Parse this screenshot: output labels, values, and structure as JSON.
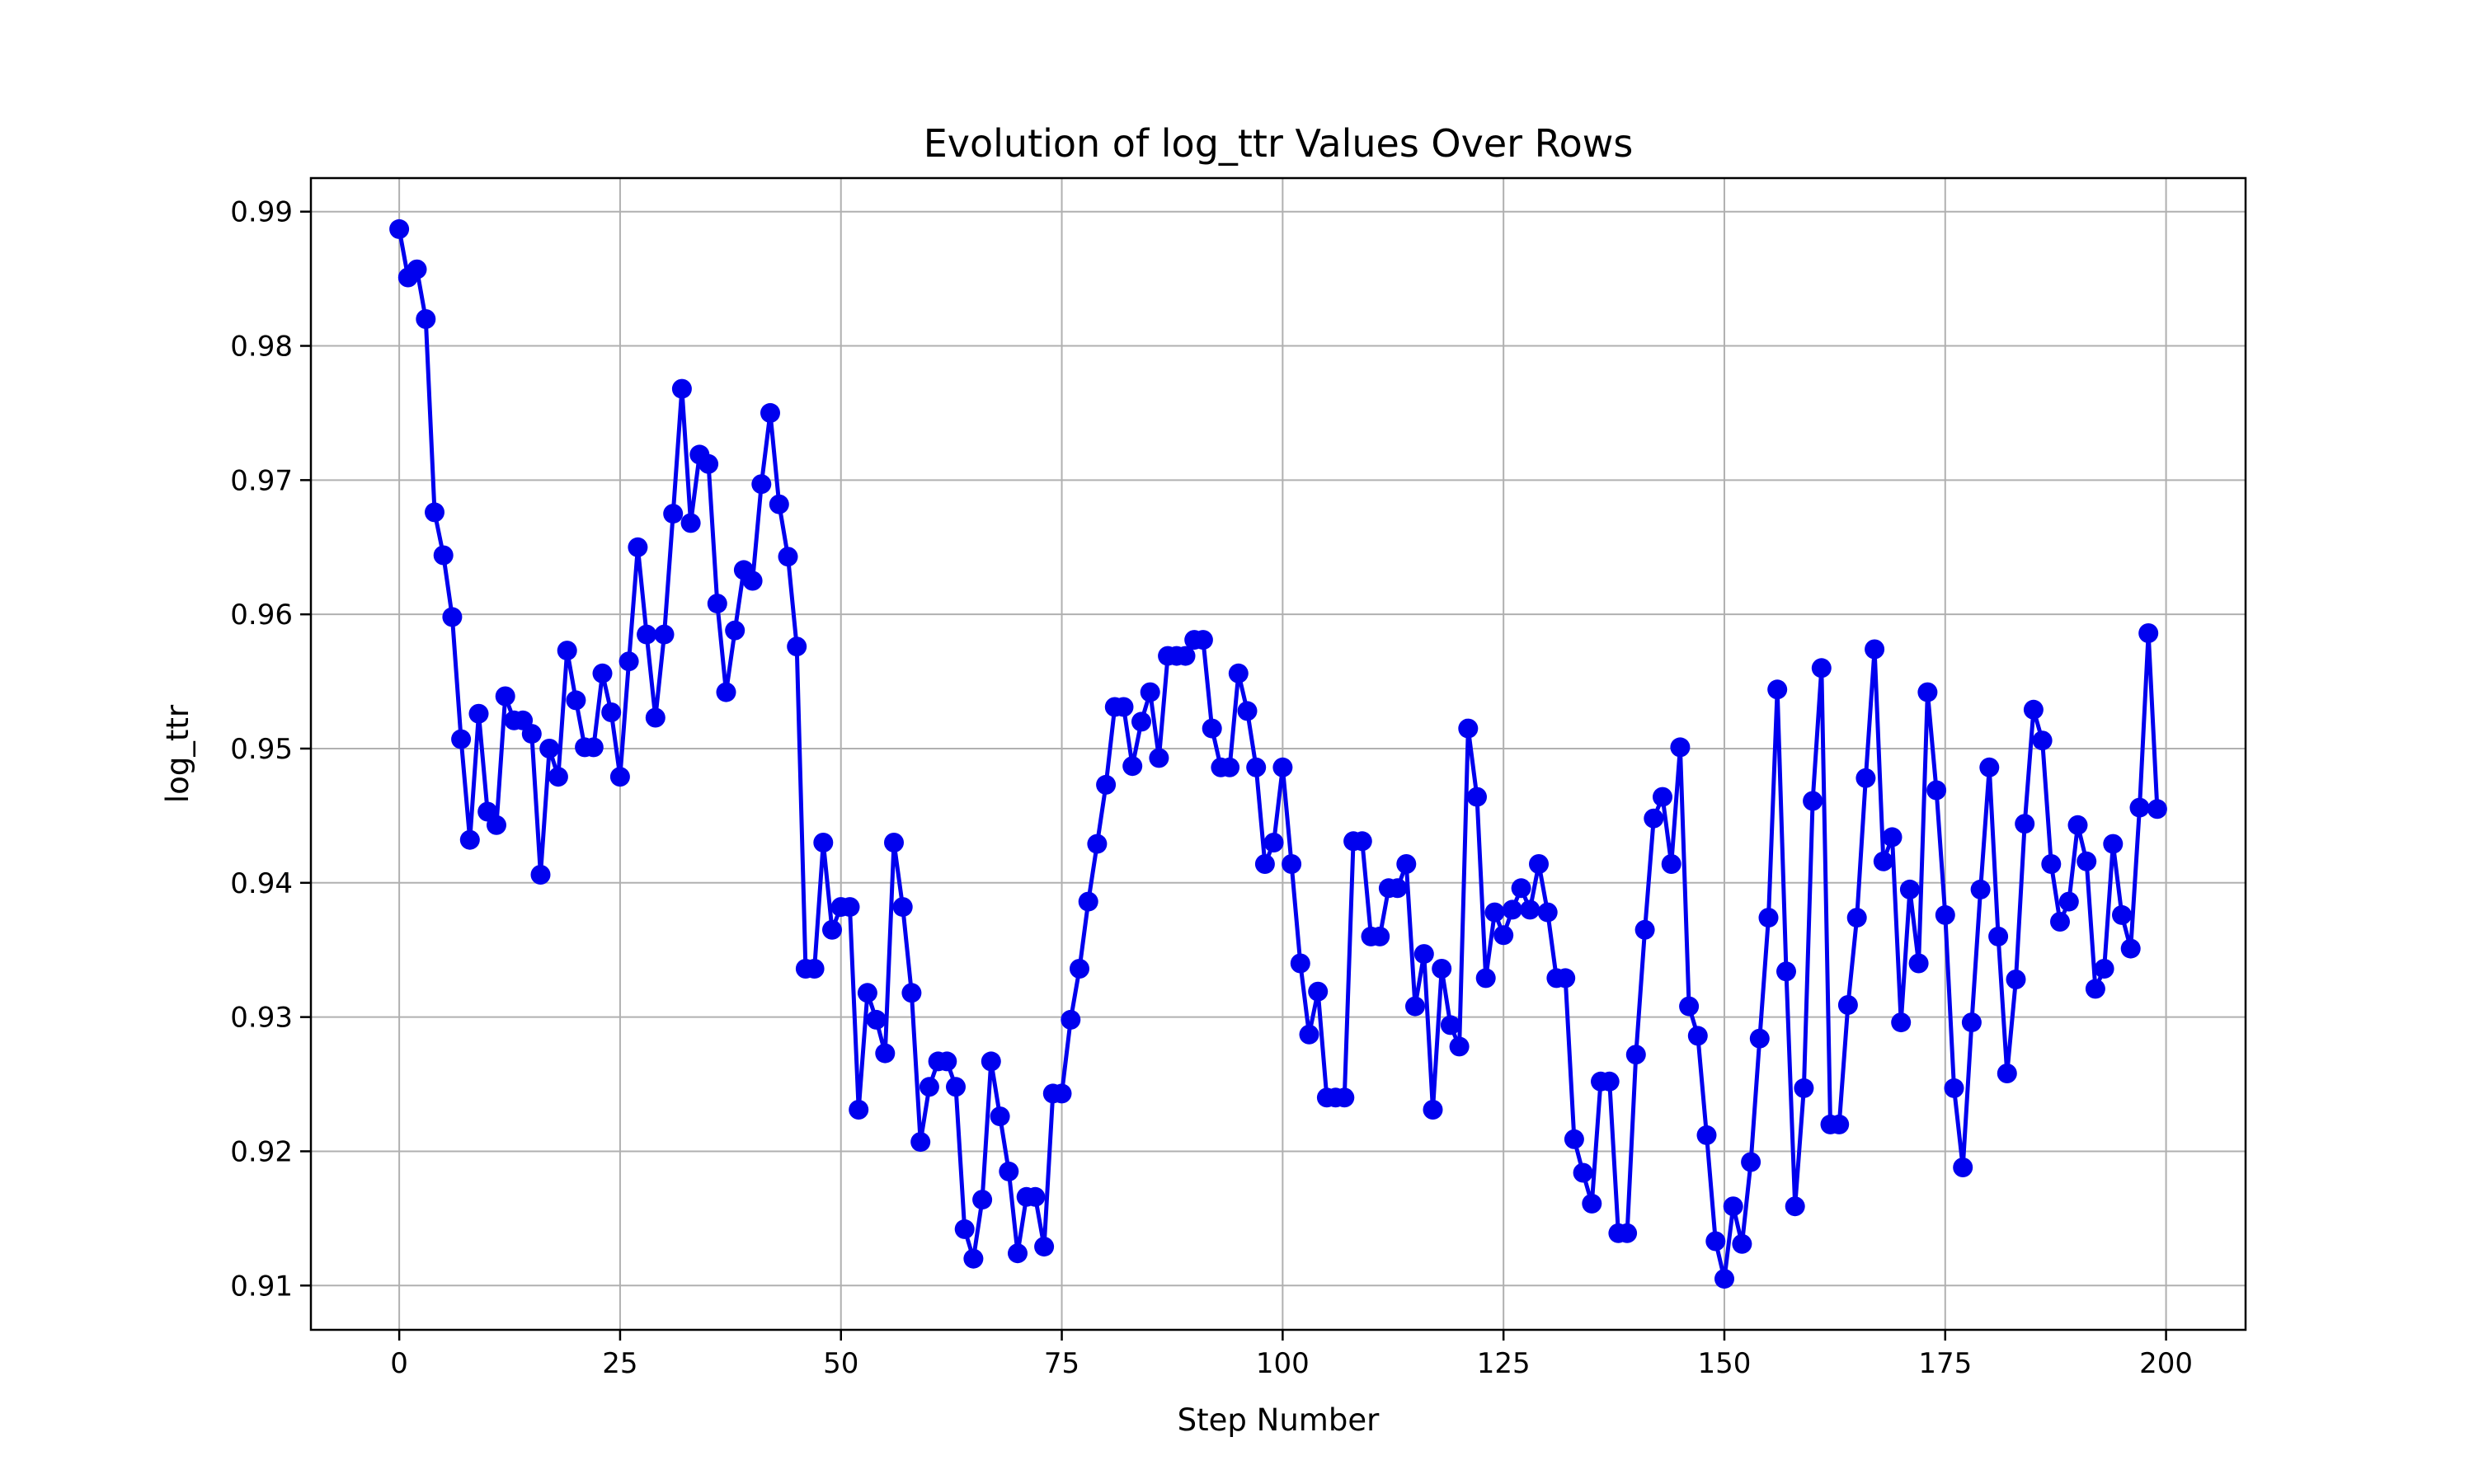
{
  "chart_data": {
    "type": "line",
    "title": "Evolution of log_ttr Values Over Rows",
    "xlabel": "Step Number",
    "ylabel": "log_ttr",
    "xlim": [
      -10,
      209
    ],
    "ylim": [
      0.9067,
      0.9925
    ],
    "xticks": [
      0,
      25,
      50,
      75,
      100,
      125,
      150,
      175,
      200
    ],
    "yticks": [
      0.91,
      0.92,
      0.93,
      0.94,
      0.95,
      0.96,
      0.97,
      0.98,
      0.99
    ],
    "ytick_labels": [
      "0.91",
      "0.92",
      "0.93",
      "0.94",
      "0.95",
      "0.96",
      "0.97",
      "0.98",
      "0.99"
    ],
    "grid": true,
    "line_color": "#0000ee",
    "marker": "circle",
    "series": [
      {
        "values": [
          0.9887,
          0.9851,
          0.9857,
          0.982,
          0.9676,
          0.9644,
          0.9598,
          0.9507,
          0.9432,
          0.9526,
          0.9453,
          0.9443,
          0.9539,
          0.9521,
          0.9521,
          0.9511,
          0.9406,
          0.95,
          0.9479,
          0.9573,
          0.9536,
          0.9501,
          0.9501,
          0.9556,
          0.9527,
          0.9479,
          0.9565,
          0.965,
          0.9585,
          0.9523,
          0.9585,
          0.9675,
          0.9768,
          0.9668,
          0.9719,
          0.9712,
          0.9608,
          0.9542,
          0.9588,
          0.9633,
          0.9625,
          0.9697,
          0.975,
          0.9682,
          0.9643,
          0.9576,
          0.9336,
          0.9336,
          0.943,
          0.9365,
          0.9382,
          0.9382,
          0.9231,
          0.9318,
          0.9298,
          0.9273,
          0.943,
          0.9382,
          0.9318,
          0.9207,
          0.9248,
          0.9267,
          0.9267,
          0.9248,
          0.9142,
          0.912,
          0.9164,
          0.9267,
          0.9226,
          0.9185,
          0.9124,
          0.9166,
          0.9166,
          0.9129,
          0.9243,
          0.9243,
          0.9298,
          0.9336,
          0.9386,
          0.9429,
          0.9473,
          0.9531,
          0.9531,
          0.9487,
          0.952,
          0.9542,
          0.9493,
          0.9569,
          0.9569,
          0.9569,
          0.9581,
          0.9581,
          0.9515,
          0.9486,
          0.9486,
          0.9556,
          0.9528,
          0.9486,
          0.9414,
          0.943,
          0.9486,
          0.9414,
          0.934,
          0.9287,
          0.9319,
          0.924,
          0.924,
          0.924,
          0.9431,
          0.9431,
          0.936,
          0.936,
          0.9396,
          0.9396,
          0.9414,
          0.9308,
          0.9347,
          0.9231,
          0.9336,
          0.9294,
          0.9278,
          0.9515,
          0.9464,
          0.9329,
          0.9378,
          0.9361,
          0.938,
          0.9396,
          0.938,
          0.9414,
          0.9378,
          0.9329,
          0.9329,
          0.9209,
          0.9184,
          0.9161,
          0.9252,
          0.9252,
          0.9139,
          0.9139,
          0.9272,
          0.9365,
          0.9448,
          0.9464,
          0.9414,
          0.9501,
          0.9308,
          0.9286,
          0.9212,
          0.9133,
          0.9105,
          0.9159,
          0.9131,
          0.9192,
          0.9284,
          0.9374,
          0.9544,
          0.9334,
          0.9159,
          0.9247,
          0.9461,
          0.956,
          0.922,
          0.922,
          0.9309,
          0.9374,
          0.9478,
          0.9574,
          0.9416,
          0.9434,
          0.9296,
          0.9395,
          0.934,
          0.9542,
          0.9469,
          0.9376,
          0.9247,
          0.9188,
          0.9296,
          0.9395,
          0.9486,
          0.936,
          0.9258,
          0.9328,
          0.9444,
          0.9529,
          0.9506,
          0.9414,
          0.9371,
          0.9386,
          0.9443,
          0.9416,
          0.9321,
          0.9336,
          0.9429,
          0.9376,
          0.9351,
          0.9456,
          0.9586,
          0.9455
        ]
      }
    ]
  }
}
